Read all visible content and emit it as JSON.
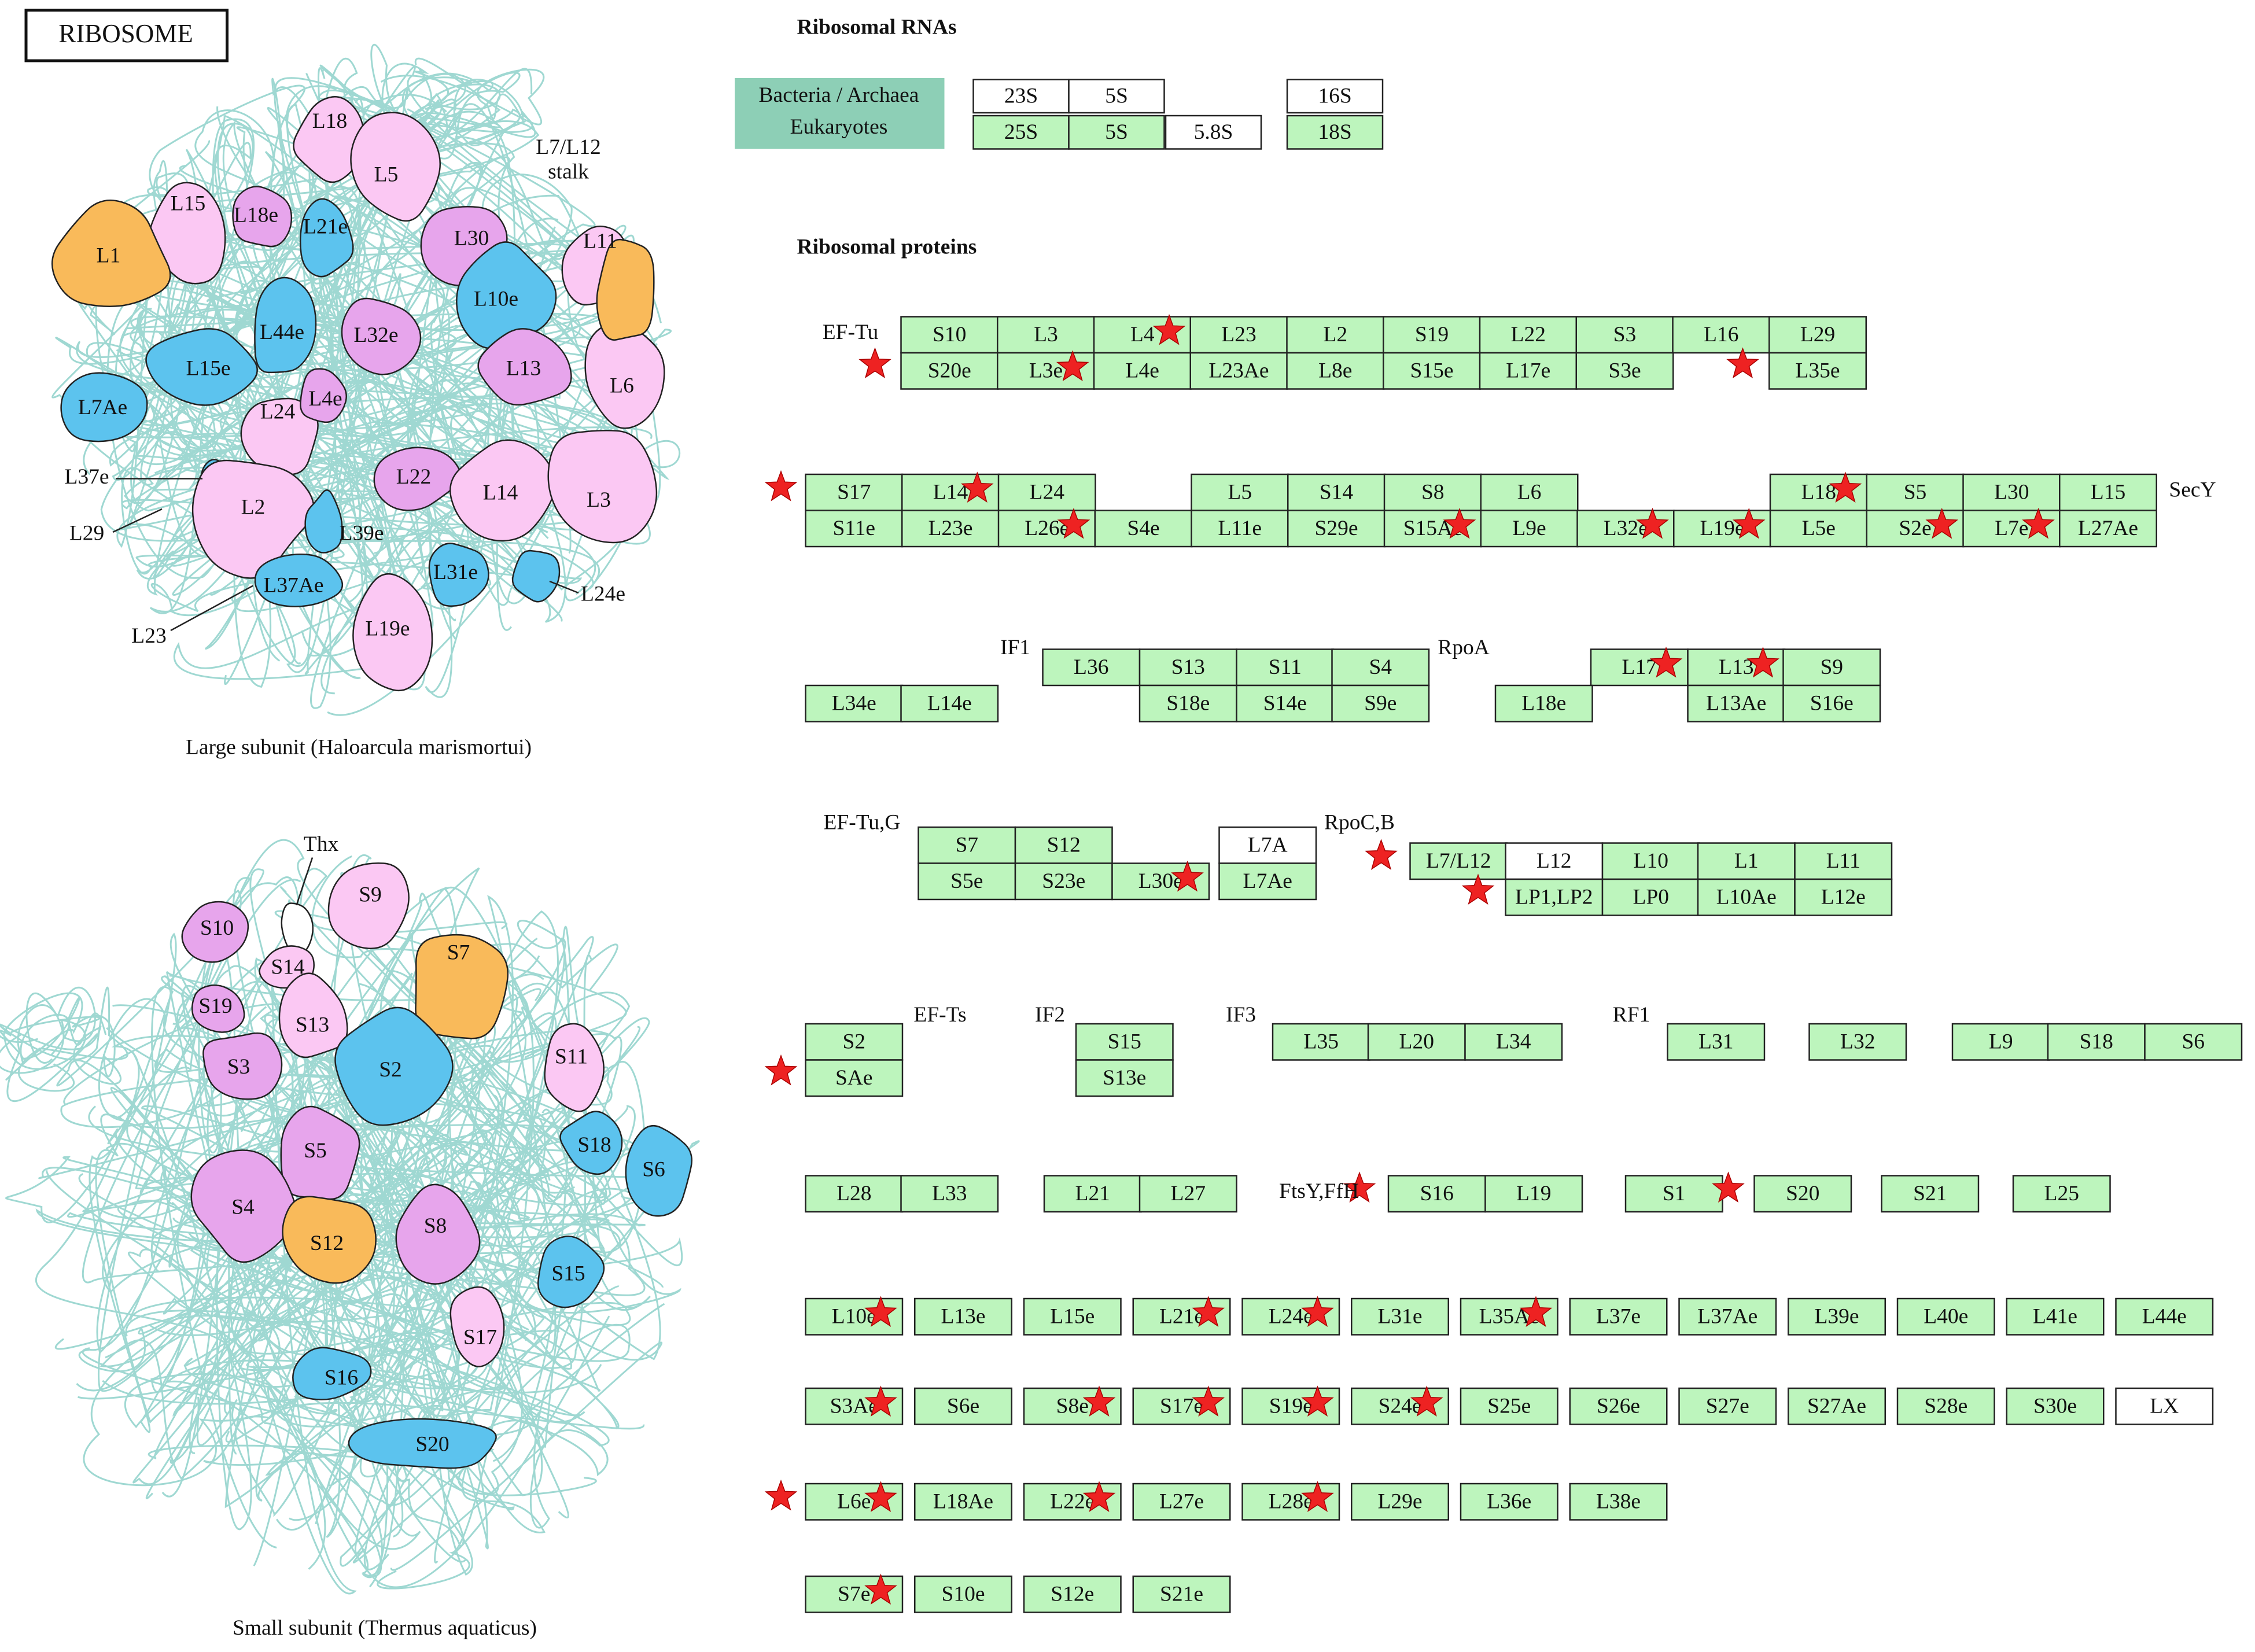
{
  "title": "RIBOSOME",
  "colors": {
    "box": "#bdf5bd",
    "empty": "#ffffff",
    "legend": "#8dcfb6",
    "light_pink": "#fbc8f3",
    "magenta": "#e7a5ec",
    "blue": "#5cc3ee",
    "orange": "#f9ba5a",
    "rna_chain": "#9fd8d2",
    "star": "#ee2222"
  },
  "rna": {
    "heading": "Ribosomal RNAs",
    "legend": [
      "Bacteria / Archaea",
      "Eukaryotes"
    ],
    "boxes": [
      {
        "label": "23S",
        "empty": true
      },
      {
        "label": "5S",
        "empty": true
      },
      {
        "label": "25S"
      },
      {
        "label": "5S"
      },
      {
        "label": "5.8S",
        "empty": true
      },
      {
        "label": "16S",
        "empty": true
      },
      {
        "label": "18S"
      }
    ]
  },
  "proteins": {
    "heading": "Ribosomal proteins",
    "side_labels": [
      "EF-Tu",
      "SecY",
      "IF1",
      "RpoA",
      "EF-Tu,G",
      "RpoC,B",
      "EF-Ts",
      "IF2",
      "IF3",
      "RF1",
      "FtsY,FfH"
    ],
    "rows": [
      [
        {
          "label": "S10"
        },
        {
          "label": "L3"
        },
        {
          "label": "L4",
          "star": true
        },
        {
          "label": "L23"
        },
        {
          "label": "L2"
        },
        {
          "label": "S19"
        },
        {
          "label": "L22"
        },
        {
          "label": "S3"
        },
        {
          "label": "L16"
        },
        {
          "label": "L29"
        }
      ],
      [
        {
          "label": "S20e"
        },
        {
          "label": "L3e",
          "star": true
        },
        {
          "label": "L4e"
        },
        {
          "label": "L23Ae"
        },
        {
          "label": "L8e"
        },
        {
          "label": "S15e"
        },
        {
          "label": "L17e"
        },
        {
          "label": "S3e"
        },
        {
          "label": "L35e"
        }
      ],
      [
        {
          "label": "S17"
        },
        {
          "label": "L14",
          "star": true
        },
        {
          "label": "L24"
        },
        {
          "label": "L5"
        },
        {
          "label": "S14"
        },
        {
          "label": "S8"
        },
        {
          "label": "L6"
        },
        {
          "label": "L18",
          "star": true
        },
        {
          "label": "S5"
        },
        {
          "label": "L30"
        },
        {
          "label": "L15"
        }
      ],
      [
        {
          "label": "S11e"
        },
        {
          "label": "L23e"
        },
        {
          "label": "L26e",
          "star": true
        },
        {
          "label": "S4e"
        },
        {
          "label": "L11e"
        },
        {
          "label": "S29e"
        },
        {
          "label": "S15Ae",
          "star": true
        },
        {
          "label": "L9e"
        },
        {
          "label": "L32e",
          "star": true
        },
        {
          "label": "L19e",
          "star": true
        },
        {
          "label": "L5e"
        },
        {
          "label": "S2e",
          "star": true
        },
        {
          "label": "L7e",
          "star": true
        },
        {
          "label": "L27Ae"
        }
      ],
      [
        {
          "label": "L36"
        },
        {
          "label": "S13"
        },
        {
          "label": "S11"
        },
        {
          "label": "S4"
        },
        {
          "label": "L17",
          "star": true
        },
        {
          "label": "L13",
          "star": true
        },
        {
          "label": "S9"
        }
      ],
      [
        {
          "label": "L34e"
        },
        {
          "label": "L14e"
        },
        {
          "label": "S18e"
        },
        {
          "label": "S14e"
        },
        {
          "label": "S9e"
        },
        {
          "label": "L18e"
        },
        {
          "label": "L13Ae"
        },
        {
          "label": "S16e"
        }
      ],
      [
        {
          "label": "S7"
        },
        {
          "label": "S12"
        },
        {
          "label": "L7A",
          "empty": true
        }
      ],
      [
        {
          "label": "S5e"
        },
        {
          "label": "S23e"
        },
        {
          "label": "L30e",
          "star": true
        },
        {
          "label": "L7Ae"
        }
      ],
      [
        {
          "label": "L7/L12"
        },
        {
          "label": "L12",
          "empty": true
        },
        {
          "label": "L10"
        },
        {
          "label": "L1"
        },
        {
          "label": "L11"
        }
      ],
      [
        {
          "label": "LP1,LP2"
        },
        {
          "label": "LP0"
        },
        {
          "label": "L10Ae"
        },
        {
          "label": "L12e"
        }
      ],
      [
        {
          "label": "S2"
        },
        {
          "label": "S15"
        },
        {
          "label": "L35"
        },
        {
          "label": "L20"
        },
        {
          "label": "L34"
        },
        {
          "label": "L31"
        },
        {
          "label": "L32"
        },
        {
          "label": "L9"
        },
        {
          "label": "S18"
        },
        {
          "label": "S6"
        }
      ],
      [
        {
          "label": "SAe"
        },
        {
          "label": "S13e"
        }
      ],
      [
        {
          "label": "L28"
        },
        {
          "label": "L33"
        },
        {
          "label": "L21"
        },
        {
          "label": "L27"
        },
        {
          "label": "S16"
        },
        {
          "label": "L19"
        },
        {
          "label": "S1"
        },
        {
          "label": "S20"
        },
        {
          "label": "S21"
        },
        {
          "label": "L25"
        }
      ],
      [
        {
          "label": "L10e",
          "star": true
        },
        {
          "label": "L13e"
        },
        {
          "label": "L15e"
        },
        {
          "label": "L21e",
          "star": true
        },
        {
          "label": "L24e",
          "star": true
        },
        {
          "label": "L31e"
        },
        {
          "label": "L35Ae",
          "star": true
        },
        {
          "label": "L37e"
        },
        {
          "label": "L37Ae"
        },
        {
          "label": "L39e"
        },
        {
          "label": "L40e"
        },
        {
          "label": "L41e"
        },
        {
          "label": "L44e"
        }
      ],
      [
        {
          "label": "S3Ae",
          "star": true
        },
        {
          "label": "S6e"
        },
        {
          "label": "S8e",
          "star": true
        },
        {
          "label": "S17e",
          "star": true
        },
        {
          "label": "S19e",
          "star": true
        },
        {
          "label": "S24e",
          "star": true
        },
        {
          "label": "S25e"
        },
        {
          "label": "S26e"
        },
        {
          "label": "S27e"
        },
        {
          "label": "S27Ae"
        },
        {
          "label": "S28e"
        },
        {
          "label": "S30e"
        },
        {
          "label": "LX",
          "empty": true
        }
      ],
      [
        {
          "label": "L6e",
          "star": true
        },
        {
          "label": "L18Ae"
        },
        {
          "label": "L22e",
          "star": true
        },
        {
          "label": "L27e"
        },
        {
          "label": "L28e",
          "star": true
        },
        {
          "label": "L29e"
        },
        {
          "label": "L36e"
        },
        {
          "label": "L38e"
        }
      ],
      [
        {
          "label": "S7e",
          "star": true
        },
        {
          "label": "S10e"
        },
        {
          "label": "S12e"
        },
        {
          "label": "S21e"
        }
      ]
    ]
  },
  "structures": {
    "large": {
      "caption": "Large subunit (Haloarcula marismortui)",
      "annotations": [
        "L7/L12",
        "stalk"
      ],
      "labels": [
        "L18",
        "L5",
        "L15",
        "L18e",
        "L21e",
        "L30",
        "L11",
        "L1",
        "L10e",
        "L44e",
        "L32e",
        "L15e",
        "L13",
        "L6",
        "L7Ae",
        "L24",
        "L4e",
        "L37e",
        "L22",
        "L14",
        "L3",
        "L2",
        "L29",
        "L39e",
        "L37Ae",
        "L31e",
        "L24e",
        "L23",
        "L19e"
      ]
    },
    "small": {
      "caption": "Small subunit (Thermus aquaticus)",
      "labels": [
        "Thx",
        "S9",
        "S10",
        "S14",
        "S7",
        "S19",
        "S13",
        "S3",
        "S2",
        "S11",
        "S5",
        "S18",
        "S6",
        "S4",
        "S12",
        "S8",
        "S15",
        "S17",
        "S16",
        "S20"
      ]
    }
  }
}
